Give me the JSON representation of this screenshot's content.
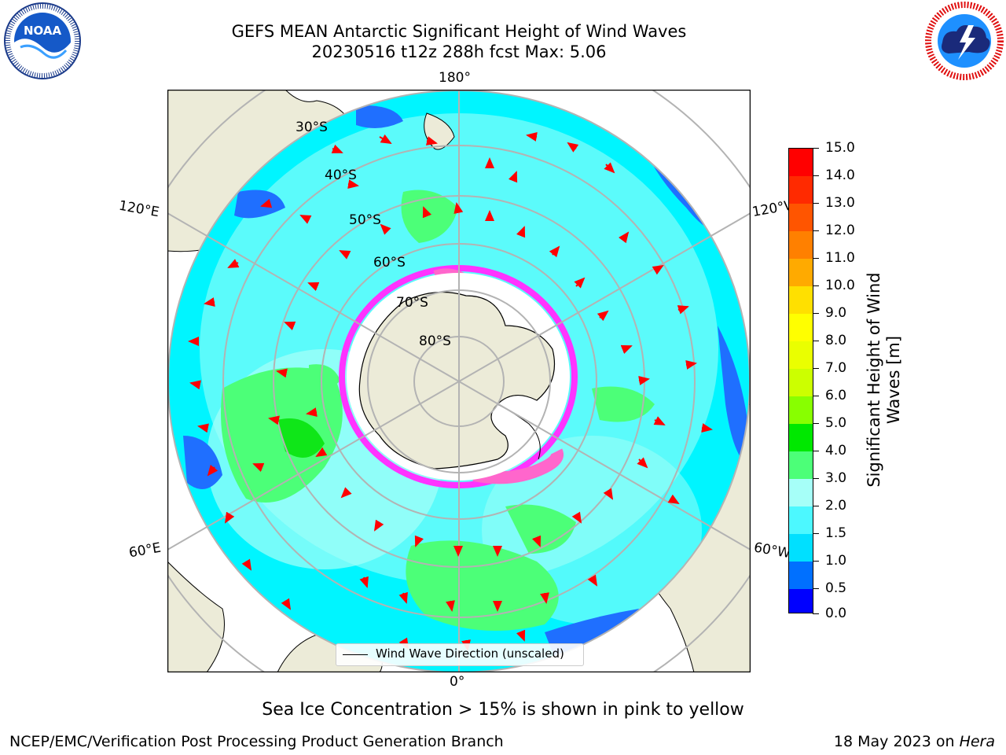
{
  "title_line1": "GEFS MEAN Antarctic Significant Height of Wind Waves",
  "title_line2": "20230516 t12z 288h fcst   Max: 5.06",
  "logos": {
    "noaa_text": "NOAA",
    "noaa_ring_text": "NATIONAL OCEANIC AND ATMOSPHERIC ADMINISTRATION · U.S. DEPARTMENT OF COMMERCE",
    "nws_ring_text": "NATIONAL WEATHER SERVICE"
  },
  "map": {
    "projection": "south-polar-stereographic",
    "lon_labels": {
      "top": "180°",
      "bottom": "0°",
      "upper_left": "120°E",
      "upper_right": "120°W",
      "lower_left": "60°E",
      "lower_right": "60°W"
    },
    "lat_labels": [
      "30°S",
      "40°S",
      "50°S",
      "60°S",
      "70°S",
      "80°S"
    ],
    "legend_label": "Wind Wave Direction (unscaled)",
    "colors": {
      "land": "#ecebd8",
      "ocean_deep_blue": "#1f6fff",
      "ocean_cyan": "#00f5ff",
      "ocean_light_cyan": "#a6fff8",
      "ocean_green": "#4cff78",
      "arrows": "#ff0000",
      "ice_pink": "#ff33ff"
    }
  },
  "colorbar": {
    "label": "Significant Height of Wind Waves [m]",
    "ticks": [
      "15.0",
      "14.0",
      "13.0",
      "12.0",
      "11.0",
      "10.0",
      "9.0",
      "8.0",
      "7.0",
      "6.0",
      "5.0",
      "4.0",
      "3.0",
      "2.0",
      "1.5",
      "1.0",
      "0.5",
      "0.0"
    ],
    "colors": [
      "#ff0000",
      "#ff2a00",
      "#ff5500",
      "#ff8000",
      "#ffaa00",
      "#ffd400",
      "#ffff00",
      "#f0ff00",
      "#d4ff00",
      "#aaff00",
      "#55ee00",
      "#00e800",
      "#4cff78",
      "#a6fff8",
      "#00f5ff",
      "#00e0ff",
      "#0070ff",
      "#0000ff"
    ]
  },
  "sea_ice_note": "Sea Ice Concentration > 15% is shown in pink to yellow",
  "footer_left": "NCEP/EMC/Verification Post Processing Product Generation Branch",
  "footer_right_date": "18 May 2023 on ",
  "footer_right_machine": "Hera"
}
